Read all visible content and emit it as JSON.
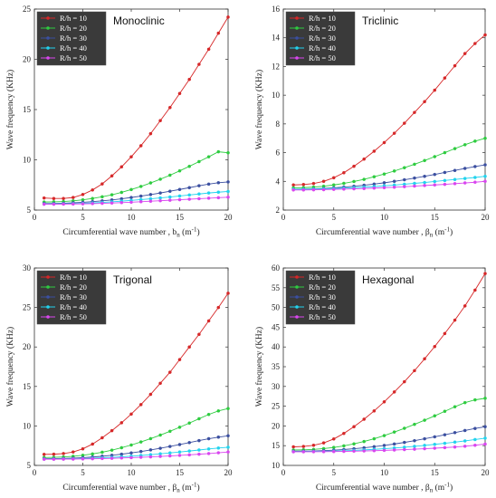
{
  "chart_data": [
    {
      "type": "line",
      "title": "Monoclinic",
      "xlabel": "Circumferential wave number , b",
      "xlabel_sub": "n",
      "xlabel_unit": " (m",
      "xlabel_sup": "-1",
      "xlabel_close": ")",
      "ylabel": "Wave frequency (KHz)",
      "xlim": [
        0,
        20
      ],
      "ylim": [
        5,
        25
      ],
      "xticks": [
        0,
        5,
        10,
        15,
        20
      ],
      "yticks": [
        5,
        10,
        15,
        20,
        25
      ],
      "legend": "top-left",
      "x": [
        1,
        2,
        3,
        4,
        5,
        6,
        7,
        8,
        9,
        10,
        11,
        12,
        13,
        14,
        15,
        16,
        17,
        18,
        19,
        20
      ],
      "series": [
        {
          "name": "R/h = 10",
          "color": "#d62728",
          "values": [
            6.2,
            6.15,
            6.15,
            6.25,
            6.55,
            7.0,
            7.6,
            8.4,
            9.3,
            10.3,
            11.4,
            12.6,
            13.9,
            15.2,
            16.6,
            18.0,
            19.5,
            21.0,
            22.6,
            24.2
          ]
        },
        {
          "name": "R/h = 20",
          "color": "#2ecc40",
          "values": [
            5.8,
            5.82,
            5.85,
            5.92,
            6.02,
            6.15,
            6.32,
            6.52,
            6.76,
            7.04,
            7.35,
            7.7,
            8.07,
            8.47,
            8.9,
            9.35,
            9.82,
            10.3,
            10.8,
            10.7
          ]
        },
        {
          "name": "R/h = 30",
          "color": "#3b4fa0",
          "values": [
            5.65,
            5.66,
            5.68,
            5.72,
            5.77,
            5.84,
            5.92,
            6.01,
            6.12,
            6.25,
            6.39,
            6.54,
            6.7,
            6.87,
            7.05,
            7.23,
            7.42,
            7.58,
            7.72,
            7.8
          ]
        },
        {
          "name": "R/h = 40",
          "color": "#22d3ee",
          "values": [
            5.6,
            5.61,
            5.62,
            5.64,
            5.67,
            5.71,
            5.76,
            5.82,
            5.89,
            5.96,
            6.04,
            6.12,
            6.21,
            6.3,
            6.4,
            6.5,
            6.6,
            6.7,
            6.78,
            6.85
          ]
        },
        {
          "name": "R/h = 50",
          "color": "#d946ef",
          "values": [
            5.58,
            5.58,
            5.59,
            5.6,
            5.62,
            5.64,
            5.67,
            5.7,
            5.74,
            5.78,
            5.83,
            5.88,
            5.93,
            5.98,
            6.03,
            6.08,
            6.13,
            6.18,
            6.23,
            6.28
          ]
        }
      ]
    },
    {
      "type": "line",
      "title": "Triclinic",
      "xlabel": "Circumferential wave number , β",
      "xlabel_sub": "n",
      "xlabel_unit": " (m",
      "xlabel_sup": "-1",
      "xlabel_close": ")",
      "ylabel": "Wave frequency (KHz)",
      "xlim": [
        0,
        20
      ],
      "ylim": [
        2,
        16
      ],
      "xticks": [
        0,
        5,
        10,
        15,
        20
      ],
      "yticks": [
        2,
        4,
        6,
        8,
        10,
        12,
        14,
        16
      ],
      "legend": "top-left",
      "x": [
        1,
        2,
        3,
        4,
        5,
        6,
        7,
        8,
        9,
        10,
        11,
        12,
        13,
        14,
        15,
        16,
        17,
        18,
        19,
        20
      ],
      "series": [
        {
          "name": "R/h = 10",
          "color": "#d62728",
          "values": [
            3.75,
            3.78,
            3.85,
            4.0,
            4.25,
            4.6,
            5.05,
            5.55,
            6.1,
            6.7,
            7.35,
            8.05,
            8.8,
            9.55,
            10.35,
            11.2,
            12.05,
            12.9,
            13.6,
            14.2
          ]
        },
        {
          "name": "R/h = 20",
          "color": "#2ecc40",
          "values": [
            3.55,
            3.56,
            3.6,
            3.66,
            3.75,
            3.86,
            3.99,
            4.14,
            4.32,
            4.51,
            4.72,
            4.95,
            5.19,
            5.45,
            5.72,
            6.0,
            6.28,
            6.55,
            6.8,
            7.0
          ]
        },
        {
          "name": "R/h = 30",
          "color": "#3b4fa0",
          "values": [
            3.45,
            3.46,
            3.48,
            3.51,
            3.55,
            3.6,
            3.66,
            3.73,
            3.81,
            3.9,
            4.0,
            4.11,
            4.23,
            4.35,
            4.48,
            4.62,
            4.76,
            4.9,
            5.03,
            5.15
          ]
        },
        {
          "name": "R/h = 40",
          "color": "#22d3ee",
          "values": [
            3.45,
            3.45,
            3.46,
            3.48,
            3.5,
            3.53,
            3.56,
            3.6,
            3.64,
            3.69,
            3.74,
            3.8,
            3.86,
            3.92,
            3.99,
            4.06,
            4.13,
            4.2,
            4.27,
            4.35
          ]
        },
        {
          "name": "R/h = 50",
          "color": "#d946ef",
          "values": [
            3.4,
            3.4,
            3.41,
            3.42,
            3.44,
            3.46,
            3.48,
            3.5,
            3.53,
            3.56,
            3.59,
            3.63,
            3.67,
            3.71,
            3.75,
            3.79,
            3.84,
            3.89,
            3.94,
            4.0
          ]
        }
      ]
    },
    {
      "type": "line",
      "title": "Trigonal",
      "xlabel": "Circumferential wave number , β",
      "xlabel_sub": "n",
      "xlabel_unit": " (m",
      "xlabel_sup": "-1",
      "xlabel_close": ")",
      "ylabel": "Wave frequency (KHz)",
      "xlim": [
        0,
        20
      ],
      "ylim": [
        5,
        30
      ],
      "xticks": [
        0,
        5,
        10,
        15,
        20
      ],
      "yticks": [
        5,
        10,
        15,
        20,
        25,
        30
      ],
      "legend": "top-left",
      "x": [
        1,
        2,
        3,
        4,
        5,
        6,
        7,
        8,
        9,
        10,
        11,
        12,
        13,
        14,
        15,
        16,
        17,
        18,
        19,
        20
      ],
      "series": [
        {
          "name": "R/h = 10",
          "color": "#d62728",
          "values": [
            6.4,
            6.42,
            6.5,
            6.7,
            7.1,
            7.7,
            8.5,
            9.4,
            10.4,
            11.5,
            12.7,
            14.0,
            15.4,
            16.8,
            18.4,
            20.0,
            21.6,
            23.3,
            25.0,
            26.8
          ]
        },
        {
          "name": "R/h = 20",
          "color": "#2ecc40",
          "values": [
            6.0,
            6.02,
            6.07,
            6.15,
            6.28,
            6.45,
            6.67,
            6.93,
            7.24,
            7.58,
            7.97,
            8.39,
            8.84,
            9.32,
            9.83,
            10.36,
            10.91,
            11.45,
            11.9,
            12.2
          ]
        },
        {
          "name": "R/h = 30",
          "color": "#3b4fa0",
          "values": [
            5.85,
            5.86,
            5.88,
            5.92,
            5.98,
            6.06,
            6.16,
            6.28,
            6.42,
            6.58,
            6.76,
            6.96,
            7.17,
            7.4,
            7.64,
            7.89,
            8.14,
            8.38,
            8.58,
            8.75
          ]
        },
        {
          "name": "R/h = 40",
          "color": "#22d3ee",
          "values": [
            5.8,
            5.81,
            5.82,
            5.84,
            5.87,
            5.91,
            5.96,
            6.02,
            6.09,
            6.17,
            6.26,
            6.36,
            6.47,
            6.58,
            6.7,
            6.82,
            6.95,
            7.08,
            7.2,
            7.3
          ]
        },
        {
          "name": "R/h = 50",
          "color": "#d946ef",
          "values": [
            5.78,
            5.78,
            5.79,
            5.8,
            5.82,
            5.84,
            5.87,
            5.9,
            5.94,
            5.98,
            6.03,
            6.08,
            6.14,
            6.2,
            6.27,
            6.34,
            6.42,
            6.5,
            6.6,
            6.7
          ]
        }
      ]
    },
    {
      "type": "line",
      "title": "Hexagonal",
      "xlabel": "Circumferential wave number , β",
      "xlabel_sub": "n",
      "xlabel_unit": " (m",
      "xlabel_sup": "-1",
      "xlabel_close": ")",
      "ylabel": "Wave frequency (KHz)",
      "xlim": [
        0,
        20
      ],
      "ylim": [
        10,
        60
      ],
      "xticks": [
        0,
        5,
        10,
        15,
        20
      ],
      "yticks": [
        10,
        15,
        20,
        25,
        30,
        35,
        40,
        45,
        50,
        55,
        60
      ],
      "legend": "top-left",
      "x": [
        1,
        2,
        3,
        4,
        5,
        6,
        7,
        8,
        9,
        10,
        11,
        12,
        13,
        14,
        15,
        16,
        17,
        18,
        19,
        20
      ],
      "series": [
        {
          "name": "R/h = 10",
          "color": "#d62728",
          "values": [
            14.7,
            14.8,
            15.1,
            15.7,
            16.7,
            18.1,
            19.8,
            21.7,
            23.8,
            26.1,
            28.6,
            31.2,
            34.0,
            37.0,
            40.1,
            43.4,
            46.8,
            50.4,
            54.4,
            58.6
          ]
        },
        {
          "name": "R/h = 20",
          "color": "#2ecc40",
          "values": [
            13.9,
            13.95,
            14.05,
            14.25,
            14.55,
            14.95,
            15.45,
            16.05,
            16.75,
            17.55,
            18.45,
            19.4,
            20.4,
            21.45,
            22.55,
            23.7,
            24.85,
            25.9,
            26.6,
            27.0
          ]
        },
        {
          "name": "R/h = 30",
          "color": "#3b4fa0",
          "values": [
            13.6,
            13.62,
            13.66,
            13.74,
            13.86,
            14.02,
            14.22,
            14.46,
            14.74,
            15.06,
            15.42,
            15.82,
            16.26,
            16.74,
            17.24,
            17.76,
            18.3,
            18.84,
            19.36,
            19.8
          ]
        },
        {
          "name": "R/h = 40",
          "color": "#22d3ee",
          "values": [
            13.5,
            13.51,
            13.53,
            13.57,
            13.63,
            13.71,
            13.81,
            13.93,
            14.07,
            14.23,
            14.41,
            14.61,
            14.83,
            15.07,
            15.33,
            15.6,
            15.9,
            16.2,
            16.55,
            16.9
          ]
        },
        {
          "name": "R/h = 50",
          "color": "#d946ef",
          "values": [
            13.45,
            13.45,
            13.46,
            13.48,
            13.51,
            13.55,
            13.6,
            13.66,
            13.73,
            13.81,
            13.9,
            14.0,
            14.11,
            14.23,
            14.36,
            14.5,
            14.65,
            14.85,
            15.1,
            15.4
          ]
        }
      ]
    }
  ]
}
